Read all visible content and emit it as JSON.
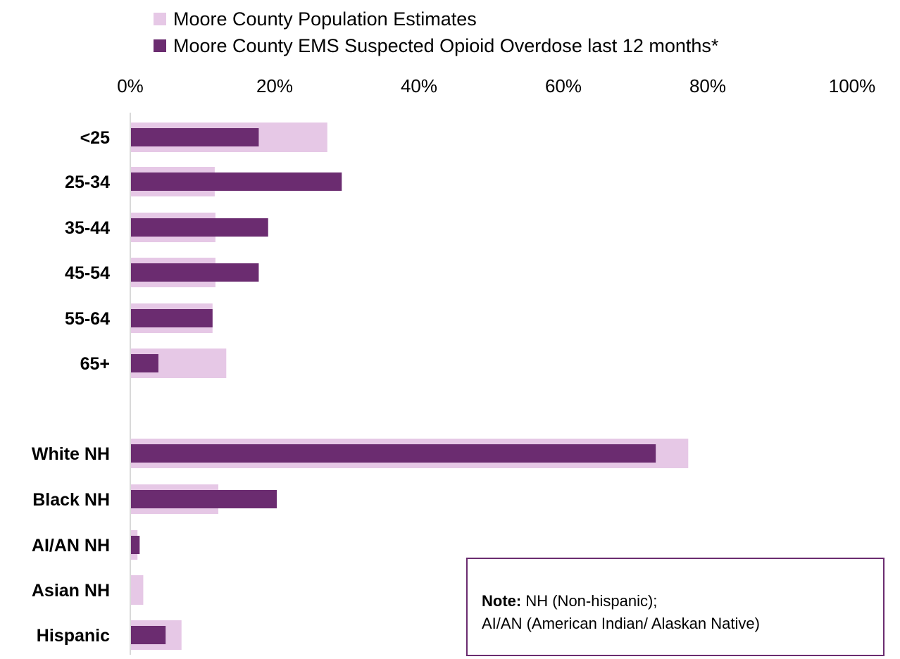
{
  "legend": [
    {
      "label": "Moore County Population Estimates",
      "color": "#e6c8e6"
    },
    {
      "label": "Moore County EMS Suspected Opioid Overdose last 12 months*",
      "color": "#6b2c70"
    }
  ],
  "note": {
    "bold": "Note:",
    "line1": "NH (Non-hispanic);",
    "line2": "AI/AN (American Indian/ Alaskan Native)"
  },
  "chart_data": {
    "type": "bar",
    "orientation": "horizontal",
    "xlim": [
      0,
      100
    ],
    "x_ticks": [
      "0%",
      "20%",
      "40%",
      "60%",
      "80%",
      "100%"
    ],
    "grid": false,
    "legend_position": "top",
    "categories": [
      "<25",
      "25-34",
      "35-44",
      "45-54",
      "55-64",
      "65+",
      "White NH",
      "Black NH",
      "AI/AN NH",
      "Asian NH",
      "Hispanic"
    ],
    "series": [
      {
        "name": "Moore County Population Estimates",
        "color": "#e6c8e6",
        "values": [
          27.2,
          11.6,
          11.7,
          11.7,
          11.3,
          13.2,
          77.2,
          12.1,
          0.9,
          1.7,
          7.0
        ]
      },
      {
        "name": "Moore County EMS Suspected Opioid Overdose last 12 months*",
        "color": "#6b2c70",
        "values": [
          17.7,
          29.2,
          19.0,
          17.7,
          11.3,
          3.8,
          72.7,
          20.2,
          1.2,
          0.0,
          4.8
        ]
      }
    ]
  }
}
